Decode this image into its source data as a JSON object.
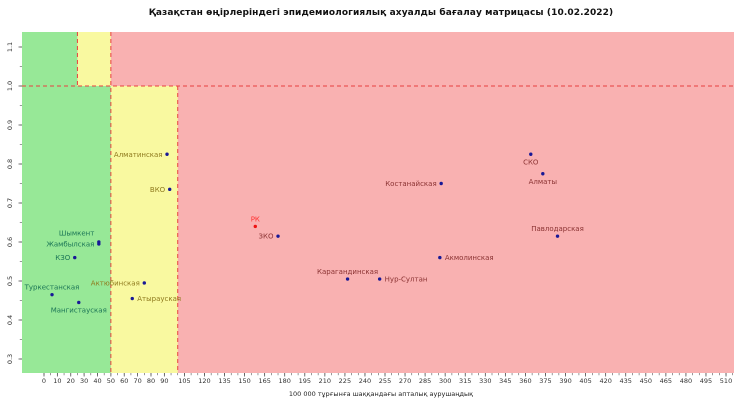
{
  "title": "Қазақстан өңірлеріндегі эпидемиологиялық ахуалды бағалау матрицасы (10.02.2022)",
  "chart_data": {
    "type": "scatter",
    "title": "Қазақстан өңірлеріндегі эпидемиологиялық ахуалды бағалау матрицасы (10.02.2022)",
    "xlabel": "100 000 тұрғынға шаққандағы апталық аурушаңдық",
    "ylabel": "",
    "xlim": [
      -16,
      516
    ],
    "ylim": [
      0.26,
      1.14
    ],
    "grid": false,
    "legend": "none",
    "x_tick_labels": [
      0,
      10,
      20,
      30,
      40,
      50,
      60,
      70,
      80,
      90,
      105,
      120,
      135,
      150,
      165,
      180,
      195,
      210,
      225,
      240,
      255,
      270,
      285,
      300,
      315,
      330,
      345,
      360,
      375,
      390,
      405,
      420,
      435,
      450,
      465,
      480,
      495,
      510
    ],
    "y_tick_labels": [
      "0.3",
      "0.4",
      "0.5",
      "0.6",
      "0.7",
      "0.8",
      "0.9",
      "1.0",
      "1.1"
    ],
    "y_tick_values": [
      0.3,
      0.4,
      0.5,
      0.6,
      0.7,
      0.8,
      0.9,
      1.0,
      1.1
    ],
    "zone_thresholds": {
      "rt_line": 1.0,
      "green_max_incidence_below_rt1": 50,
      "green_max_incidence_above_rt1": 25,
      "yellow_max_incidence_below_rt1": 100,
      "yellow_max_incidence_above_rt1": 50
    },
    "points": [
      {
        "name": "РК",
        "x": 158,
        "y": 0.64,
        "zone": "rk",
        "label_pos": "above"
      },
      {
        "name": "ЗКО",
        "x": 175,
        "y": 0.615,
        "zone": "red",
        "label_pos": "left"
      },
      {
        "name": "Алматинская",
        "x": 92,
        "y": 0.825,
        "zone": "yellow",
        "label_pos": "left"
      },
      {
        "name": "ВКО",
        "x": 94,
        "y": 0.735,
        "zone": "yellow",
        "label_pos": "left"
      },
      {
        "name": "Актюбинская",
        "x": 75,
        "y": 0.495,
        "zone": "yellow",
        "label_pos": "left"
      },
      {
        "name": "Атырауская",
        "x": 66,
        "y": 0.455,
        "zone": "yellow",
        "label_pos": "right"
      },
      {
        "name": "Шымкент",
        "x": 41,
        "y": 0.6,
        "zone": "green",
        "label_pos": "above-left"
      },
      {
        "name": "Жамбылская",
        "x": 41,
        "y": 0.595,
        "zone": "green",
        "label_pos": "left"
      },
      {
        "name": "КЗО",
        "x": 23,
        "y": 0.56,
        "zone": "green",
        "label_pos": "left"
      },
      {
        "name": "Туркестанская",
        "x": 6,
        "y": 0.465,
        "zone": "green",
        "label_pos": "above"
      },
      {
        "name": "Мангистауская",
        "x": 26,
        "y": 0.445,
        "zone": "green",
        "label_pos": "below"
      },
      {
        "name": "Карагандинская",
        "x": 227,
        "y": 0.505,
        "zone": "red",
        "label_pos": "above"
      },
      {
        "name": "Нур-Султан",
        "x": 251,
        "y": 0.505,
        "zone": "red",
        "label_pos": "right"
      },
      {
        "name": "Акмолинская",
        "x": 296,
        "y": 0.56,
        "zone": "red",
        "label_pos": "right"
      },
      {
        "name": "Костанайская",
        "x": 297,
        "y": 0.75,
        "zone": "red",
        "label_pos": "left"
      },
      {
        "name": "СКО",
        "x": 364,
        "y": 0.825,
        "zone": "red",
        "label_pos": "below"
      },
      {
        "name": "Алматы",
        "x": 373,
        "y": 0.775,
        "zone": "red",
        "label_pos": "below"
      },
      {
        "name": "Павлодарская",
        "x": 384,
        "y": 0.615,
        "zone": "red",
        "label_pos": "above"
      }
    ]
  },
  "colors": {
    "zone_green": "#97E897",
    "zone_yellow": "#F9F9A0",
    "zone_red": "#F9B1B1",
    "dash_line": "#E84040",
    "point": "#181896",
    "point_rk": "#EE1111",
    "label_green": "#1B7556",
    "label_yellow": "#8F7A1E",
    "label_red": "#8B3333",
    "label_rk": "#FF3030",
    "tick": "#555555",
    "tick_text": "#333333"
  }
}
